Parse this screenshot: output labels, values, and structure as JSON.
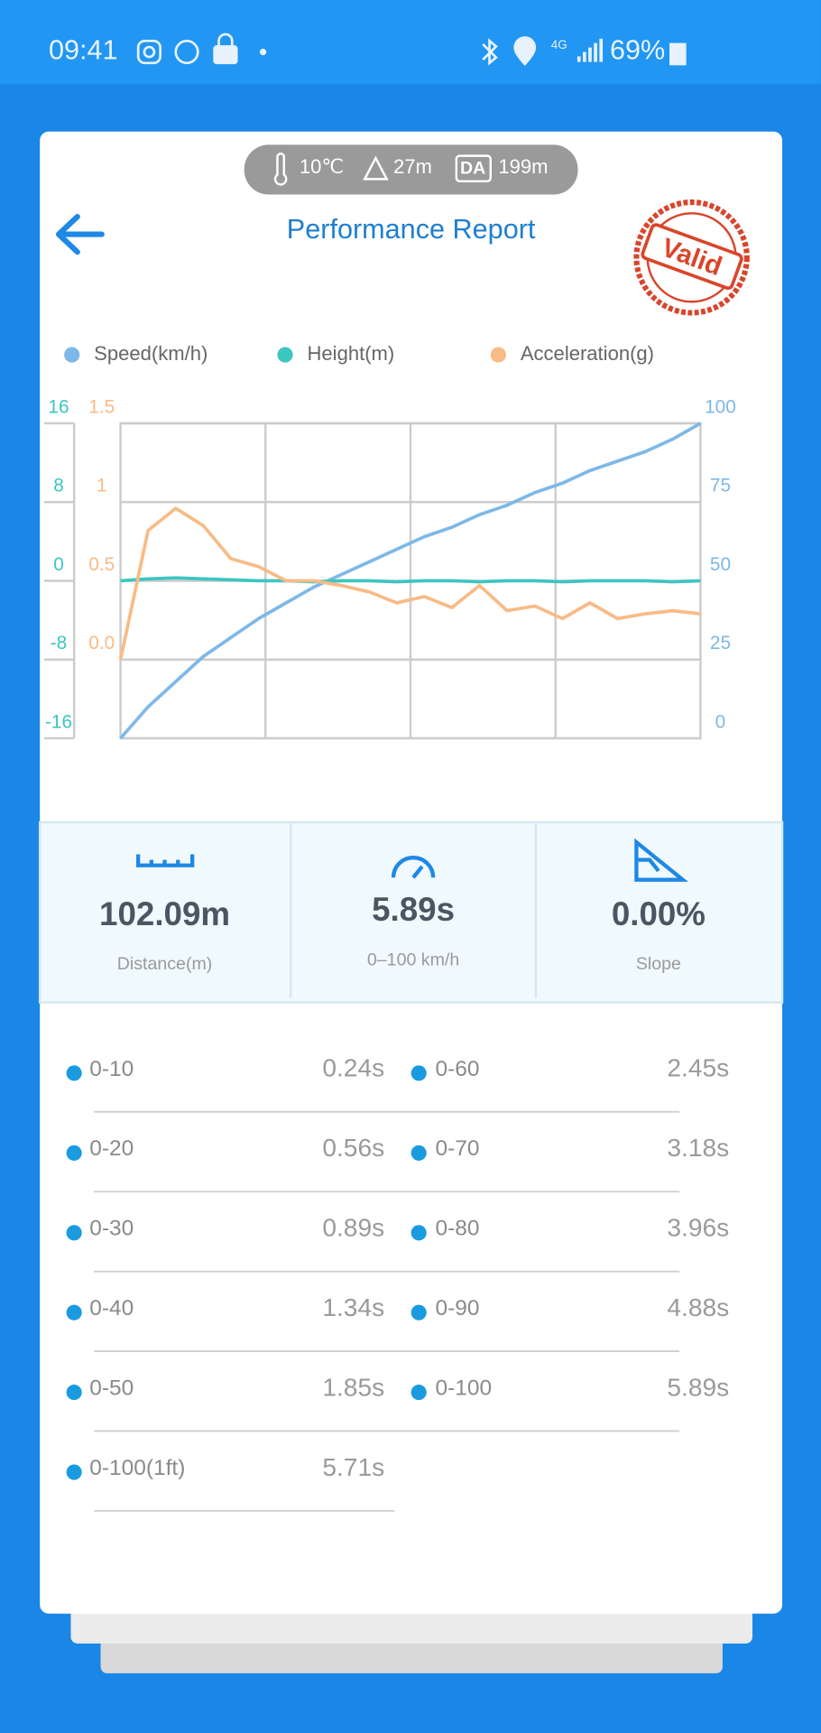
{
  "status_bar": {
    "time": "09:41",
    "network": "4G",
    "battery": "69%"
  },
  "conditions": {
    "temperature": "10℃",
    "altitude": "27m",
    "da_badge": "DA",
    "density_altitude": "199m"
  },
  "header": {
    "title": "Performance Report",
    "stamp": "Valid"
  },
  "chart_data": {
    "type": "line",
    "grid": true,
    "series": [
      {
        "name": "Speed(km/h)",
        "color": "#7db8e8",
        "axis": "y2",
        "values": [
          0,
          10,
          18,
          26,
          32,
          38,
          43,
          48,
          52,
          56,
          60,
          64,
          67,
          71,
          74,
          78,
          81,
          85,
          88,
          91,
          95,
          100
        ]
      },
      {
        "name": "Height(m)",
        "color": "#3cc6c0",
        "axis": "y",
        "values": [
          0,
          0.2,
          0.3,
          0.2,
          0.1,
          0,
          0,
          -0.1,
          0,
          0,
          -0.1,
          0,
          0,
          -0.1,
          0,
          0,
          -0.1,
          0,
          0,
          0,
          -0.1,
          0
        ]
      },
      {
        "name": "Acceleration(g)",
        "color": "#f8bb86",
        "axis": "y3",
        "values": [
          0,
          0.82,
          0.96,
          0.85,
          0.64,
          0.59,
          0.5,
          0.5,
          0.47,
          0.43,
          0.36,
          0.4,
          0.33,
          0.47,
          0.31,
          0.34,
          0.26,
          0.36,
          0.26,
          0.29,
          0.31,
          0.29
        ]
      }
    ],
    "ylim": [
      -16,
      16
    ],
    "yticks": [
      16,
      8,
      0,
      -8,
      -16
    ],
    "y3lim": [
      -0.5,
      1.5
    ],
    "y3ticks": [
      1.5,
      1,
      0.5,
      {
        "value": 0,
        "label": "0.0"
      }
    ],
    "y2lim": [
      0,
      100
    ],
    "y2ticks": [
      100,
      75,
      50,
      25,
      0
    ]
  },
  "metrics": [
    {
      "value": "102.09m",
      "label": "Distance(m)"
    },
    {
      "value": "5.89s",
      "label": "0–100 km/h"
    },
    {
      "value": "0.00%",
      "label": "Slope"
    }
  ],
  "splits": {
    "left": [
      {
        "label": "0-10",
        "time": "0.24s"
      },
      {
        "label": "0-20",
        "time": "0.56s"
      },
      {
        "label": "0-30",
        "time": "0.89s"
      },
      {
        "label": "0-40",
        "time": "1.34s"
      },
      {
        "label": "0-50",
        "time": "1.85s"
      },
      {
        "label": "0-100(1ft)",
        "time": "5.71s"
      }
    ],
    "right": [
      {
        "label": "0-60",
        "time": "2.45s"
      },
      {
        "label": "0-70",
        "time": "3.18s"
      },
      {
        "label": "0-80",
        "time": "3.96s"
      },
      {
        "label": "0-90",
        "time": "4.88s"
      },
      {
        "label": "0-100",
        "time": "5.89s"
      }
    ]
  }
}
